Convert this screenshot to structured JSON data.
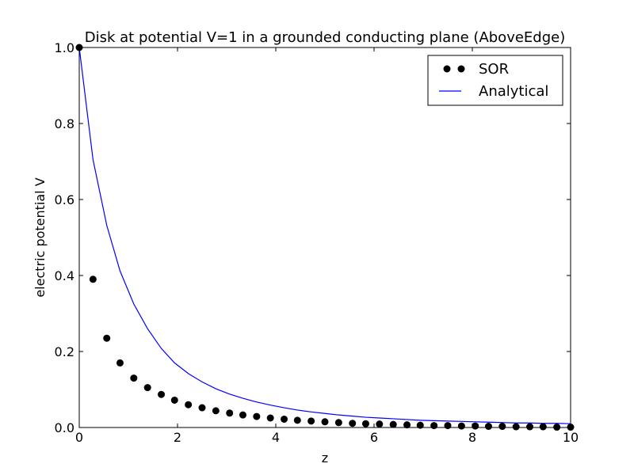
{
  "chart_data": {
    "type": "line",
    "title": "Disk at potential V=1 in a grounded conducting plane (AboveEdge)",
    "xlabel": "z",
    "ylabel": "electric potential V",
    "xlim": [
      0,
      10
    ],
    "ylim": [
      0,
      1.0
    ],
    "xticks": [
      0,
      2,
      4,
      6,
      8,
      10
    ],
    "yticks": [
      0.0,
      0.2,
      0.4,
      0.6,
      0.8,
      1.0
    ],
    "xtick_labels": [
      "0",
      "2",
      "4",
      "6",
      "8",
      "10"
    ],
    "ytick_labels": [
      "0.0",
      "0.2",
      "0.4",
      "0.6",
      "0.8",
      "1.0"
    ],
    "grid": false,
    "legend_position": "top-right",
    "series": [
      {
        "name": "SOR",
        "kind": "scatter",
        "color": "#000000",
        "x": [
          0,
          0.28,
          0.56,
          0.83,
          1.11,
          1.39,
          1.67,
          1.94,
          2.22,
          2.5,
          2.78,
          3.06,
          3.33,
          3.61,
          3.89,
          4.17,
          4.44,
          4.72,
          5.0,
          5.28,
          5.56,
          5.83,
          6.11,
          6.39,
          6.67,
          6.94,
          7.22,
          7.5,
          7.78,
          8.06,
          8.33,
          8.61,
          8.89,
          9.17,
          9.44,
          9.72,
          10.0
        ],
        "y": [
          1.0,
          0.39,
          0.235,
          0.17,
          0.13,
          0.105,
          0.087,
          0.072,
          0.06,
          0.052,
          0.044,
          0.038,
          0.033,
          0.029,
          0.025,
          0.022,
          0.019,
          0.017,
          0.015,
          0.013,
          0.011,
          0.01,
          0.009,
          0.008,
          0.007,
          0.006,
          0.005,
          0.005,
          0.004,
          0.004,
          0.003,
          0.003,
          0.002,
          0.002,
          0.002,
          0.001,
          0.001
        ]
      },
      {
        "name": "Analytical",
        "kind": "line",
        "color": "#0000ff",
        "x": [
          0,
          0.28,
          0.56,
          0.83,
          1.11,
          1.39,
          1.67,
          1.94,
          2.22,
          2.5,
          2.78,
          3.06,
          3.33,
          3.61,
          3.89,
          4.17,
          4.44,
          4.72,
          5.0,
          5.28,
          5.56,
          5.83,
          6.11,
          6.39,
          6.67,
          6.94,
          7.22,
          7.5,
          7.78,
          8.06,
          8.33,
          8.61,
          8.89,
          9.17,
          9.44,
          9.72,
          10.0
        ],
        "y": [
          1.0,
          0.705,
          0.532,
          0.412,
          0.325,
          0.26,
          0.208,
          0.17,
          0.142,
          0.12,
          0.102,
          0.088,
          0.077,
          0.067,
          0.059,
          0.052,
          0.046,
          0.041,
          0.037,
          0.033,
          0.03,
          0.027,
          0.025,
          0.023,
          0.021,
          0.019,
          0.018,
          0.017,
          0.016,
          0.015,
          0.014,
          0.013,
          0.012,
          0.012,
          0.011,
          0.011,
          0.01
        ]
      }
    ]
  }
}
